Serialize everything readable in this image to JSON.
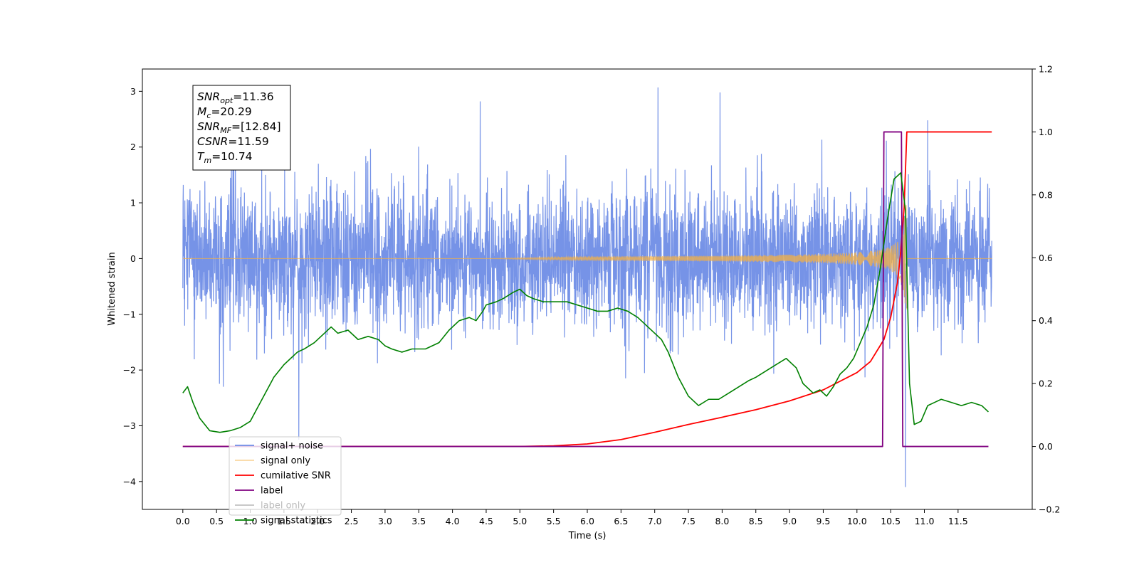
{
  "chart_data": {
    "type": "line",
    "title": "",
    "xlabel": "Time (s)",
    "ylabel": "Whitened strain",
    "xlim": [
      -0.6,
      12.6
    ],
    "ylim": [
      -4.5,
      3.4
    ],
    "y2lim": [
      -0.2,
      1.2
    ],
    "x_ticks": [
      "0.0",
      "0.5",
      "1.0",
      "1.5",
      "2.0",
      "2.5",
      "3.0",
      "3.5",
      "4.0",
      "4.5",
      "5.0",
      "5.5",
      "6.0",
      "6.5",
      "7.0",
      "7.5",
      "8.0",
      "8.5",
      "9.0",
      "9.5",
      "10.0",
      "10.5",
      "11.0",
      "11.5"
    ],
    "y_ticks": [
      "3",
      "2",
      "1",
      "0",
      "−1",
      "−2",
      "−3",
      "−4"
    ],
    "y2_ticks": [
      "1.2",
      "1.0",
      "0.8",
      "0.6",
      "0.4",
      "0.2",
      "0.0",
      "−0.2"
    ],
    "grid": false,
    "legend_position": "lower-left",
    "annotation": {
      "lines": [
        {
          "base": "SNR",
          "sub": "opt",
          "value": "=11.36"
        },
        {
          "base": "M",
          "sub": "c",
          "value": "=20.29"
        },
        {
          "base": "SNR",
          "sub": "MF",
          "value": "=[12.84]"
        },
        {
          "base": "CSNR",
          "sub": "",
          "value": "=11.59"
        },
        {
          "base": "T",
          "sub": "m",
          "value": "=10.74"
        }
      ]
    },
    "series": [
      {
        "name": "signal+ noise",
        "color": "#6f8de6",
        "axis": "left",
        "description": "Gaussian whitened noise, sigma approx 0.65, 0.0 to 12.0 s, occasional spikes to about +3.07 and -4.1",
        "spikes": [
          [
            1.72,
            -3.25
          ],
          [
            4.41,
            2.82
          ],
          [
            7.05,
            3.07
          ],
          [
            7.97,
            2.98
          ],
          [
            10.72,
            -4.1
          ],
          [
            11.05,
            2.48
          ],
          [
            0.6,
            -2.3
          ]
        ]
      },
      {
        "name": "signal only",
        "color": "#f5b041",
        "axis": "left",
        "description": "chirp, amplitude grows from 0 near 5.8 s to about 1.0 at 10.74 s, then 0",
        "peak_time": 10.74,
        "peak_amplitude": 1.0
      },
      {
        "name": "cumilative SNR",
        "color": "#ff0000",
        "axis": "right",
        "x": [
          0.0,
          5.0,
          5.5,
          6.0,
          6.5,
          7.0,
          7.5,
          8.0,
          8.5,
          9.0,
          9.5,
          10.0,
          10.2,
          10.4,
          10.5,
          10.6,
          10.65,
          10.7,
          10.72,
          10.74,
          12.0
        ],
        "y": [
          0.0,
          0.0,
          0.002,
          0.008,
          0.022,
          0.045,
          0.07,
          0.093,
          0.117,
          0.145,
          0.18,
          0.235,
          0.27,
          0.34,
          0.41,
          0.52,
          0.62,
          0.76,
          0.88,
          1.0,
          1.0
        ]
      },
      {
        "name": "label",
        "color": "#800080",
        "axis": "right",
        "x": [
          0.0,
          10.38,
          10.4,
          10.66,
          10.68,
          10.98,
          11.0,
          11.95
        ],
        "y": [
          0.0,
          0.0,
          1.0,
          1.0,
          0.0,
          0.0,
          0.0,
          0.0
        ],
        "x_full": [
          0.0,
          10.38,
          10.4,
          10.66,
          10.68,
          11.95
        ],
        "y_full": [
          0.0,
          0.0,
          1.0,
          1.0,
          0.0,
          0.0
        ]
      },
      {
        "name": "label only",
        "color": "#c0c0c0",
        "axis": "right",
        "hidden": true
      },
      {
        "name": "signal statistics",
        "color": "#008000",
        "axis": "right",
        "x": [
          0.0,
          0.07,
          0.15,
          0.25,
          0.4,
          0.55,
          0.7,
          0.85,
          1.0,
          1.1,
          1.25,
          1.35,
          1.5,
          1.6,
          1.7,
          1.8,
          1.95,
          2.1,
          2.2,
          2.3,
          2.45,
          2.6,
          2.75,
          2.9,
          3.0,
          3.1,
          3.25,
          3.4,
          3.6,
          3.8,
          3.95,
          4.1,
          4.25,
          4.35,
          4.45,
          4.5,
          4.65,
          4.75,
          4.9,
          5.0,
          5.1,
          5.2,
          5.35,
          5.5,
          5.7,
          5.85,
          6.0,
          6.15,
          6.3,
          6.45,
          6.6,
          6.75,
          6.9,
          7.0,
          7.1,
          7.2,
          7.35,
          7.5,
          7.65,
          7.8,
          7.95,
          8.1,
          8.25,
          8.4,
          8.5,
          8.65,
          8.8,
          8.95,
          9.1,
          9.2,
          9.35,
          9.45,
          9.55,
          9.65,
          9.75,
          9.85,
          9.95,
          10.05,
          10.15,
          10.25,
          10.35,
          10.45,
          10.55,
          10.65,
          10.72,
          10.78,
          10.85,
          10.95,
          11.05,
          11.15,
          11.25,
          11.4,
          11.55,
          11.7,
          11.85,
          11.95
        ],
        "y": [
          0.17,
          0.19,
          0.14,
          0.09,
          0.05,
          0.045,
          0.05,
          0.06,
          0.08,
          0.12,
          0.18,
          0.22,
          0.26,
          0.28,
          0.3,
          0.31,
          0.33,
          0.36,
          0.38,
          0.36,
          0.37,
          0.34,
          0.35,
          0.34,
          0.32,
          0.31,
          0.3,
          0.31,
          0.31,
          0.33,
          0.37,
          0.4,
          0.41,
          0.4,
          0.43,
          0.45,
          0.46,
          0.47,
          0.49,
          0.5,
          0.48,
          0.47,
          0.46,
          0.46,
          0.46,
          0.45,
          0.44,
          0.43,
          0.43,
          0.44,
          0.43,
          0.41,
          0.38,
          0.36,
          0.34,
          0.3,
          0.22,
          0.16,
          0.13,
          0.15,
          0.15,
          0.17,
          0.19,
          0.21,
          0.22,
          0.24,
          0.26,
          0.28,
          0.25,
          0.2,
          0.17,
          0.18,
          0.16,
          0.19,
          0.23,
          0.25,
          0.28,
          0.33,
          0.38,
          0.45,
          0.57,
          0.72,
          0.85,
          0.87,
          0.75,
          0.2,
          0.07,
          0.08,
          0.13,
          0.14,
          0.15,
          0.14,
          0.13,
          0.14,
          0.13,
          0.11
        ]
      }
    ]
  }
}
